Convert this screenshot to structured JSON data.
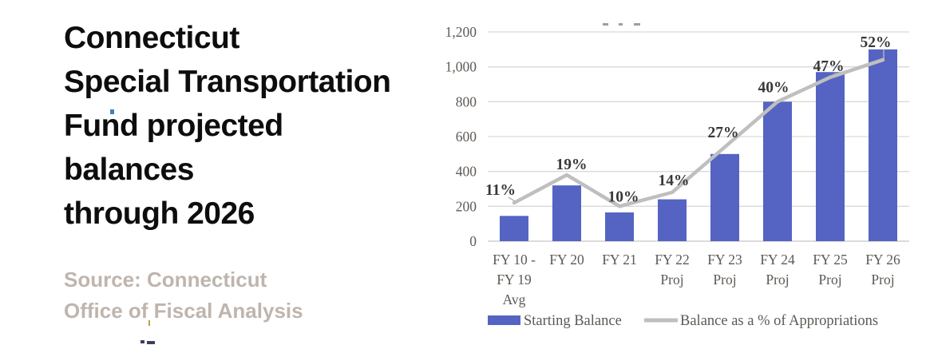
{
  "left_panel": {
    "title_lines": [
      "Connecticut",
      "Special Transportation",
      "Fund projected",
      "balances",
      "through 2026"
    ],
    "title_color": "#0d0d0d",
    "source_lines": [
      "Source: Connecticut",
      "Office of Fiscal Analysis"
    ],
    "source_color": "#beb5ae"
  },
  "chart_data": {
    "type": "bar",
    "subtype": "combo-bar-line",
    "title": "Connecticut Special Transportation Fund projected balances through 2026",
    "categories": [
      "FY 10 - FY 19 Avg",
      "FY 20",
      "FY 21",
      "FY 22 Proj",
      "FY 23 Proj",
      "FY 24 Proj",
      "FY 25 Proj",
      "FY 26 Proj"
    ],
    "category_label_lines": [
      [
        "FY 10 -",
        "FY 19",
        "Avg"
      ],
      [
        "FY 20"
      ],
      [
        "FY 21"
      ],
      [
        "FY 22",
        "Proj"
      ],
      [
        "FY 23",
        "Proj"
      ],
      [
        "FY 24",
        "Proj"
      ],
      [
        "FY 25",
        "Proj"
      ],
      [
        "FY 26",
        "Proj"
      ]
    ],
    "series": [
      {
        "name": "Starting Balance",
        "type": "bar",
        "color": "#5564c2",
        "values": [
          145,
          320,
          165,
          240,
          500,
          800,
          970,
          1100
        ]
      },
      {
        "name": "Balance as a % of Appropriations",
        "type": "line",
        "color": "#bfbfbf",
        "values_percent": [
          11,
          19,
          10,
          14,
          27,
          40,
          47,
          52
        ],
        "point_labels": [
          "11%",
          "19%",
          "10%",
          "14%",
          "27%",
          "40%",
          "47%",
          "52%"
        ],
        "label_color": "#383838",
        "secondary_to_primary_scale": 20
      }
    ],
    "y_axis": {
      "min": 0,
      "max": 1200,
      "ticks": [
        {
          "label": "1,200",
          "value": 1200
        },
        {
          "label": "1,000",
          "value": 1000
        },
        {
          "label": "800",
          "value": 800
        },
        {
          "label": "600",
          "value": 600
        },
        {
          "label": "400",
          "value": 400
        },
        {
          "label": "200",
          "value": 200
        },
        {
          "label": "0",
          "value": 0
        }
      ],
      "tick_color": "#5e5954"
    },
    "grid": true,
    "gridline_color": "#d9d9d9",
    "axis_line_color": "#c8c5c2",
    "legend": {
      "position": "bottom",
      "text_color": "#5e5954",
      "items": [
        {
          "label": "Starting Balance",
          "swatch": "bar",
          "color": "#5564c2"
        },
        {
          "label": "Balance as a % of Appropriations",
          "swatch": "line",
          "color": "#bfbfbf"
        }
      ]
    }
  }
}
